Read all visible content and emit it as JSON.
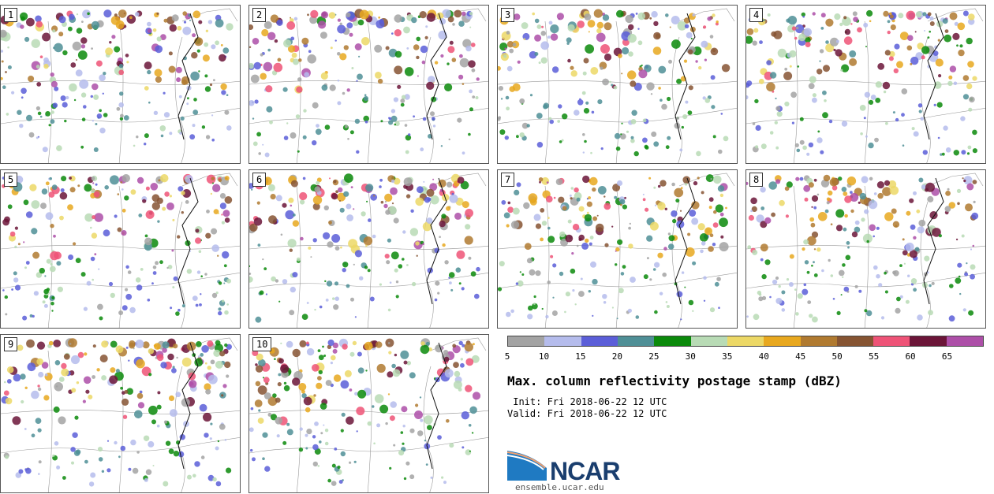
{
  "panels": [
    {
      "label": "1"
    },
    {
      "label": "2"
    },
    {
      "label": "3"
    },
    {
      "label": "4"
    },
    {
      "label": "5"
    },
    {
      "label": "6"
    },
    {
      "label": "7"
    },
    {
      "label": "8"
    },
    {
      "label": "9"
    },
    {
      "label": "10"
    }
  ],
  "colorbar": {
    "colors": [
      "#a3a3a3",
      "#b5bcec",
      "#5b5ed8",
      "#4f8f96",
      "#0b8a0b",
      "#b8dbb5",
      "#ecd866",
      "#e8a81f",
      "#b07a30",
      "#865432",
      "#ee5377",
      "#6b1538",
      "#ad4fa8"
    ],
    "ticks": [
      "5",
      "10",
      "15",
      "20",
      "25",
      "30",
      "35",
      "40",
      "45",
      "50",
      "55",
      "60",
      "65"
    ]
  },
  "title": "Max. column reflectivity postage stamp (dBZ)",
  "init_line": " Init: Fri 2018-06-22 12 UTC",
  "valid_line": "Valid: Fri 2018-06-22 12 UTC",
  "logo": {
    "text": "NCAR",
    "url": "ensemble.ucar.edu"
  }
}
